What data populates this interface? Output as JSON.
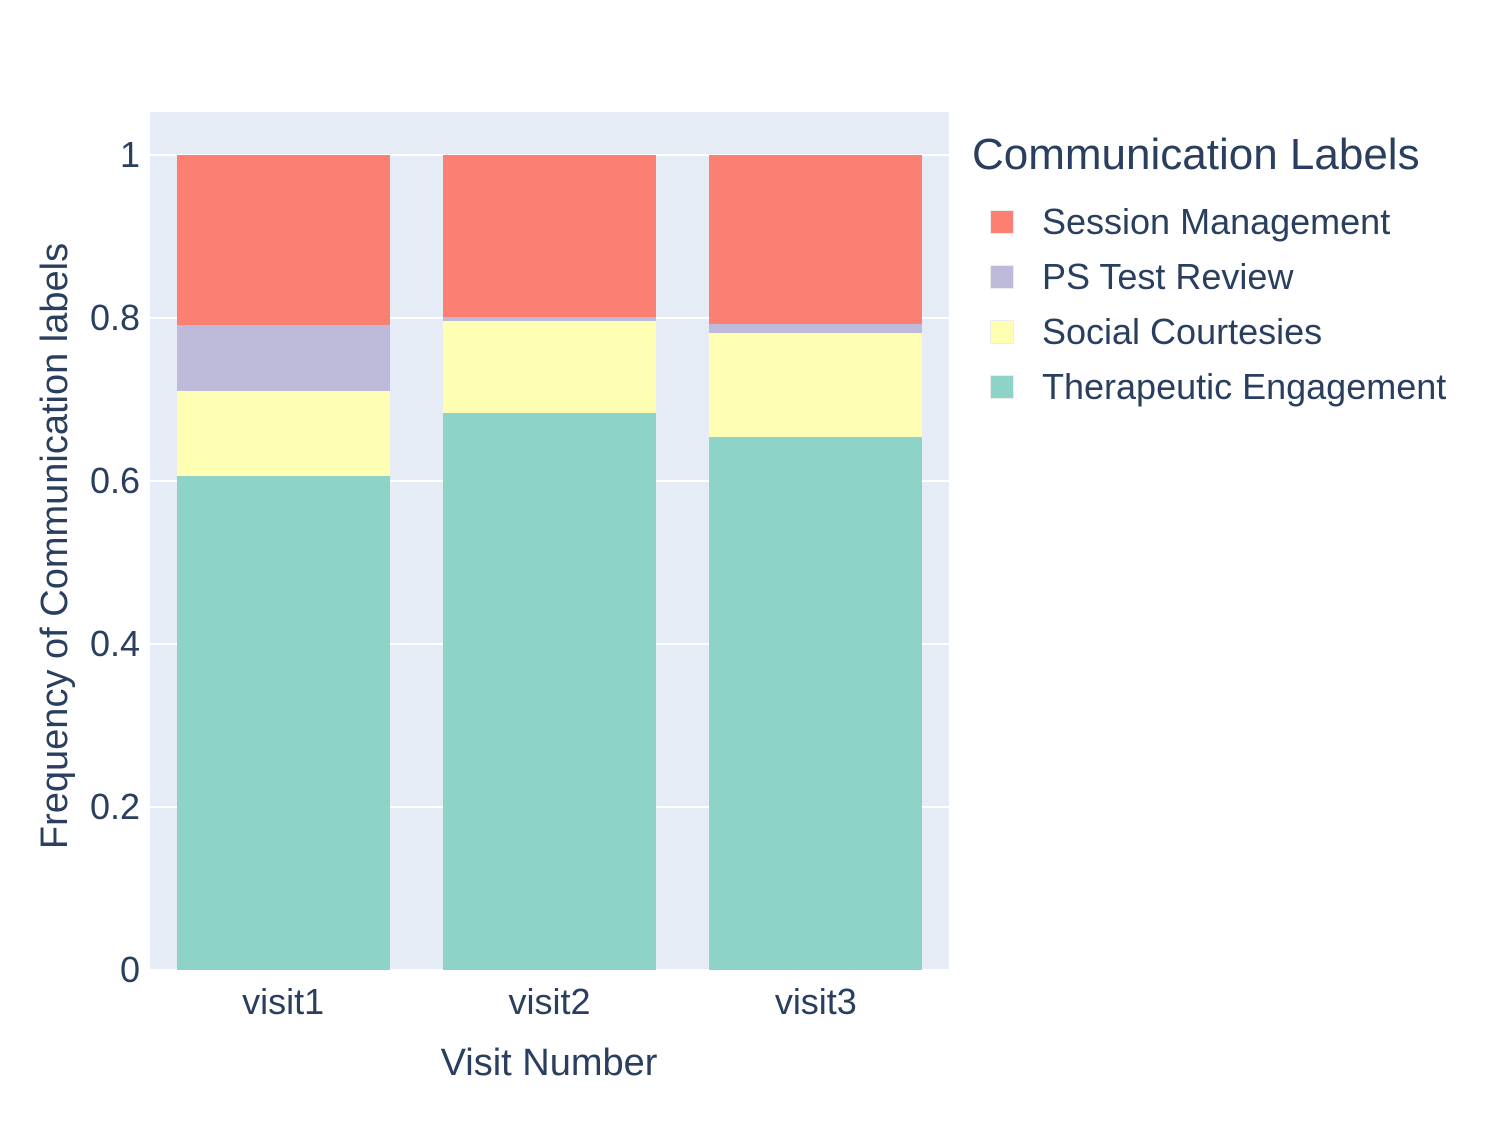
{
  "legend": {
    "title": "Communication Labels",
    "items": [
      {
        "label": "Session Management",
        "color": "#FB8072"
      },
      {
        "label": "PS Test Review",
        "color": "#BEBADA"
      },
      {
        "label": "Social Courtesies",
        "color": "#FFFFB3"
      },
      {
        "label": "Therapeutic Engagement",
        "color": "#8DD3C7"
      }
    ]
  },
  "chart_data": {
    "type": "bar",
    "stacked": true,
    "categories": [
      "visit1",
      "visit2",
      "visit3"
    ],
    "series": [
      {
        "name": "Therapeutic Engagement",
        "color": "#8DD3C7",
        "values": [
          0.606,
          0.684,
          0.654
        ]
      },
      {
        "name": "Social Courtesies",
        "color": "#FFFFB3",
        "values": [
          0.105,
          0.112,
          0.127
        ]
      },
      {
        "name": "PS Test Review",
        "color": "#BEBADA",
        "values": [
          0.081,
          0.005,
          0.012
        ]
      },
      {
        "name": "Session Management",
        "color": "#FB8072",
        "values": [
          0.208,
          0.199,
          0.207
        ]
      }
    ],
    "title": "",
    "xlabel": "Visit Number",
    "ylabel": "Frequency of Communication labels",
    "ylim": [
      0,
      1
    ],
    "yticks": [
      0,
      0.2,
      0.4,
      0.6,
      0.8,
      1
    ],
    "ytick_labels": [
      "0",
      "0.2",
      "0.4",
      "0.6",
      "0.8",
      "1"
    ],
    "grid": true,
    "gridline_color": "#ffffff",
    "plot_bgcolor": "#e5ecf6",
    "font_color": "#2a3f5f",
    "legend_position": "right",
    "legend_title": "Communication Labels"
  }
}
